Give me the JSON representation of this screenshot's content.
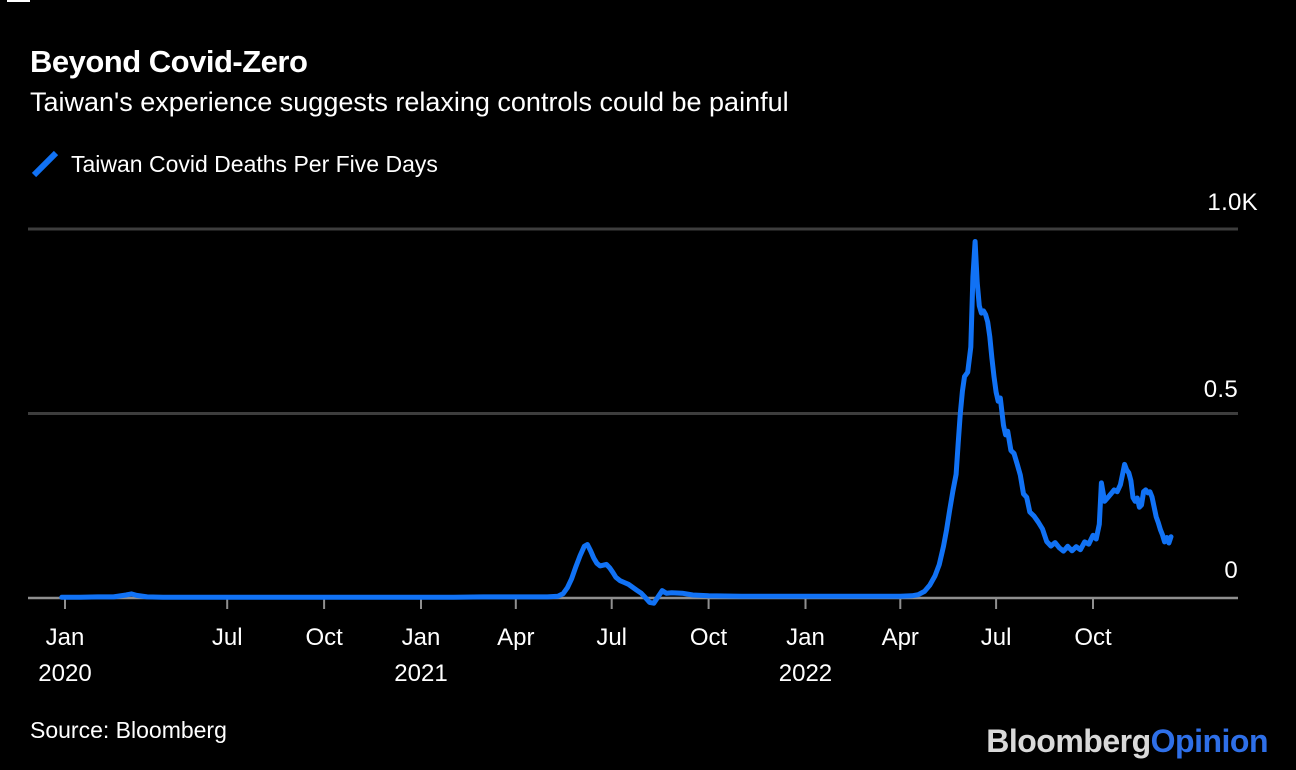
{
  "header": {
    "title": "Beyond Covid-Zero",
    "subtitle": "Taiwan's experience suggests relaxing controls could be painful"
  },
  "legend": {
    "label": "Taiwan Covid Deaths Per Five Days"
  },
  "footer": {
    "source": "Source: Bloomberg",
    "logo_primary": "Bloomberg",
    "logo_secondary": "Opinion"
  },
  "colors": {
    "background": "#000000",
    "text": "#FFFFFF",
    "line_blue": "#1172F5",
    "grid": "#3D3D3D",
    "axis": "#8F8F8F",
    "logo_gray": "#D9D9D9",
    "logo_blue": "#2E6FE8"
  },
  "chart_data": {
    "type": "line",
    "title": "Taiwan Covid Deaths Per Five Days",
    "legend_position": "top-left",
    "grid": "horizontal",
    "y_axis": {
      "range": [
        0,
        1000
      ],
      "unit": "deaths per five days",
      "ticks": [
        {
          "label": "1.0K",
          "value": 1000
        },
        {
          "label": "0.5",
          "value": 500
        },
        {
          "label": "0",
          "value": 0
        }
      ]
    },
    "x_axis": {
      "range": [
        "2020-01-22",
        "2023-02-10"
      ],
      "ticks": [
        {
          "label": "Jan",
          "date": "2020-01-29",
          "year": "2020"
        },
        {
          "label": "Jul",
          "date": "2020-07-01"
        },
        {
          "label": "Oct",
          "date": "2020-10-01"
        },
        {
          "label": "Jan",
          "date": "2021-01-01",
          "year": "2021"
        },
        {
          "label": "Apr",
          "date": "2021-04-01"
        },
        {
          "label": "Jul",
          "date": "2021-07-01"
        },
        {
          "label": "Oct",
          "date": "2021-10-01"
        },
        {
          "label": "Jan",
          "date": "2022-01-01",
          "year": "2022"
        },
        {
          "label": "Apr",
          "date": "2022-04-01"
        },
        {
          "label": "Jul",
          "date": "2022-07-01"
        },
        {
          "label": "Oct",
          "date": "2022-10-01"
        }
      ]
    },
    "series": [
      {
        "name": "Taiwan Covid Deaths Per Five Days",
        "color": "#1172F5",
        "points": [
          [
            "2020-01-26",
            2
          ],
          [
            "2020-02-12",
            2
          ],
          [
            "2020-02-29",
            3
          ],
          [
            "2020-03-15",
            3
          ],
          [
            "2020-03-27",
            8
          ],
          [
            "2020-04-01",
            11
          ],
          [
            "2020-04-06",
            7
          ],
          [
            "2020-04-16",
            3
          ],
          [
            "2020-05-01",
            2
          ],
          [
            "2020-06-01",
            2
          ],
          [
            "2020-07-01",
            2
          ],
          [
            "2020-08-01",
            2
          ],
          [
            "2020-09-01",
            2
          ],
          [
            "2020-10-01",
            2
          ],
          [
            "2020-11-01",
            2
          ],
          [
            "2020-12-01",
            2
          ],
          [
            "2021-01-01",
            2
          ],
          [
            "2021-02-01",
            2
          ],
          [
            "2021-03-01",
            3
          ],
          [
            "2021-04-01",
            3
          ],
          [
            "2021-05-01",
            3
          ],
          [
            "2021-05-11",
            5
          ],
          [
            "2021-05-16",
            12
          ],
          [
            "2021-05-20",
            28
          ],
          [
            "2021-05-24",
            52
          ],
          [
            "2021-05-28",
            85
          ],
          [
            "2021-06-01",
            115
          ],
          [
            "2021-06-05",
            140
          ],
          [
            "2021-06-08",
            145
          ],
          [
            "2021-06-11",
            128
          ],
          [
            "2021-06-14",
            108
          ],
          [
            "2021-06-17",
            94
          ],
          [
            "2021-06-20",
            87
          ],
          [
            "2021-06-23",
            89
          ],
          [
            "2021-06-26",
            91
          ],
          [
            "2021-06-29",
            82
          ],
          [
            "2021-07-02",
            70
          ],
          [
            "2021-07-05",
            56
          ],
          [
            "2021-07-09",
            47
          ],
          [
            "2021-07-13",
            42
          ],
          [
            "2021-07-17",
            37
          ],
          [
            "2021-07-21",
            29
          ],
          [
            "2021-07-25",
            21
          ],
          [
            "2021-07-29",
            13
          ],
          [
            "2021-08-02",
            1
          ],
          [
            "2021-08-06",
            -12
          ],
          [
            "2021-08-10",
            -14
          ],
          [
            "2021-08-14",
            3
          ],
          [
            "2021-08-18",
            20
          ],
          [
            "2021-08-22",
            13
          ],
          [
            "2021-08-27",
            14
          ],
          [
            "2021-09-06",
            13
          ],
          [
            "2021-09-16",
            8
          ],
          [
            "2021-10-01",
            6
          ],
          [
            "2021-11-01",
            5
          ],
          [
            "2021-12-01",
            5
          ],
          [
            "2022-01-01",
            5
          ],
          [
            "2022-02-01",
            5
          ],
          [
            "2022-03-01",
            5
          ],
          [
            "2022-04-01",
            5
          ],
          [
            "2022-04-12",
            6
          ],
          [
            "2022-04-18",
            9
          ],
          [
            "2022-04-24",
            18
          ],
          [
            "2022-04-29",
            35
          ],
          [
            "2022-05-04",
            60
          ],
          [
            "2022-05-08",
            90
          ],
          [
            "2022-05-12",
            140
          ],
          [
            "2022-05-15",
            185
          ],
          [
            "2022-05-18",
            240
          ],
          [
            "2022-05-21",
            290
          ],
          [
            "2022-05-24",
            335
          ],
          [
            "2022-05-26",
            420
          ],
          [
            "2022-05-28",
            500
          ],
          [
            "2022-05-30",
            560
          ],
          [
            "2022-06-01",
            600
          ],
          [
            "2022-06-04",
            612
          ],
          [
            "2022-06-07",
            680
          ],
          [
            "2022-06-09",
            870
          ],
          [
            "2022-06-11",
            966
          ],
          [
            "2022-06-13",
            855
          ],
          [
            "2022-06-15",
            792
          ],
          [
            "2022-06-17",
            772
          ],
          [
            "2022-06-19",
            778
          ],
          [
            "2022-06-21",
            768
          ],
          [
            "2022-06-23",
            748
          ],
          [
            "2022-06-25",
            708
          ],
          [
            "2022-06-27",
            650
          ],
          [
            "2022-06-29",
            600
          ],
          [
            "2022-07-01",
            558
          ],
          [
            "2022-07-03",
            533
          ],
          [
            "2022-07-05",
            542
          ],
          [
            "2022-07-08",
            468
          ],
          [
            "2022-07-10",
            442
          ],
          [
            "2022-07-12",
            452
          ],
          [
            "2022-07-15",
            400
          ],
          [
            "2022-07-18",
            392
          ],
          [
            "2022-07-21",
            363
          ],
          [
            "2022-07-24",
            333
          ],
          [
            "2022-07-27",
            282
          ],
          [
            "2022-07-30",
            273
          ],
          [
            "2022-08-02",
            233
          ],
          [
            "2022-08-06",
            222
          ],
          [
            "2022-08-10",
            206
          ],
          [
            "2022-08-14",
            187
          ],
          [
            "2022-08-18",
            153
          ],
          [
            "2022-08-22",
            141
          ],
          [
            "2022-08-26",
            150
          ],
          [
            "2022-08-30",
            136
          ],
          [
            "2022-09-03",
            127
          ],
          [
            "2022-09-07",
            140
          ],
          [
            "2022-09-11",
            128
          ],
          [
            "2022-09-15",
            139
          ],
          [
            "2022-09-19",
            131
          ],
          [
            "2022-09-23",
            152
          ],
          [
            "2022-09-27",
            146
          ],
          [
            "2022-10-01",
            170
          ],
          [
            "2022-10-04",
            160
          ],
          [
            "2022-10-07",
            200
          ],
          [
            "2022-10-09",
            312
          ],
          [
            "2022-10-12",
            262
          ],
          [
            "2022-10-15",
            272
          ],
          [
            "2022-10-18",
            282
          ],
          [
            "2022-10-21",
            293
          ],
          [
            "2022-10-24",
            288
          ],
          [
            "2022-10-27",
            307
          ],
          [
            "2022-10-31",
            362
          ],
          [
            "2022-11-02",
            347
          ],
          [
            "2022-11-04",
            339
          ],
          [
            "2022-11-06",
            318
          ],
          [
            "2022-11-08",
            272
          ],
          [
            "2022-11-10",
            262
          ],
          [
            "2022-11-12",
            271
          ],
          [
            "2022-11-14",
            246
          ],
          [
            "2022-11-16",
            252
          ],
          [
            "2022-11-18",
            288
          ],
          [
            "2022-11-20",
            293
          ],
          [
            "2022-11-22",
            285
          ],
          [
            "2022-11-24",
            288
          ],
          [
            "2022-11-26",
            274
          ],
          [
            "2022-11-28",
            247
          ],
          [
            "2022-11-30",
            220
          ],
          [
            "2022-12-02",
            204
          ],
          [
            "2022-12-04",
            185
          ],
          [
            "2022-12-06",
            171
          ],
          [
            "2022-12-08",
            152
          ],
          [
            "2022-12-10",
            164
          ],
          [
            "2022-12-12",
            149
          ],
          [
            "2022-12-14",
            166
          ]
        ]
      }
    ]
  }
}
